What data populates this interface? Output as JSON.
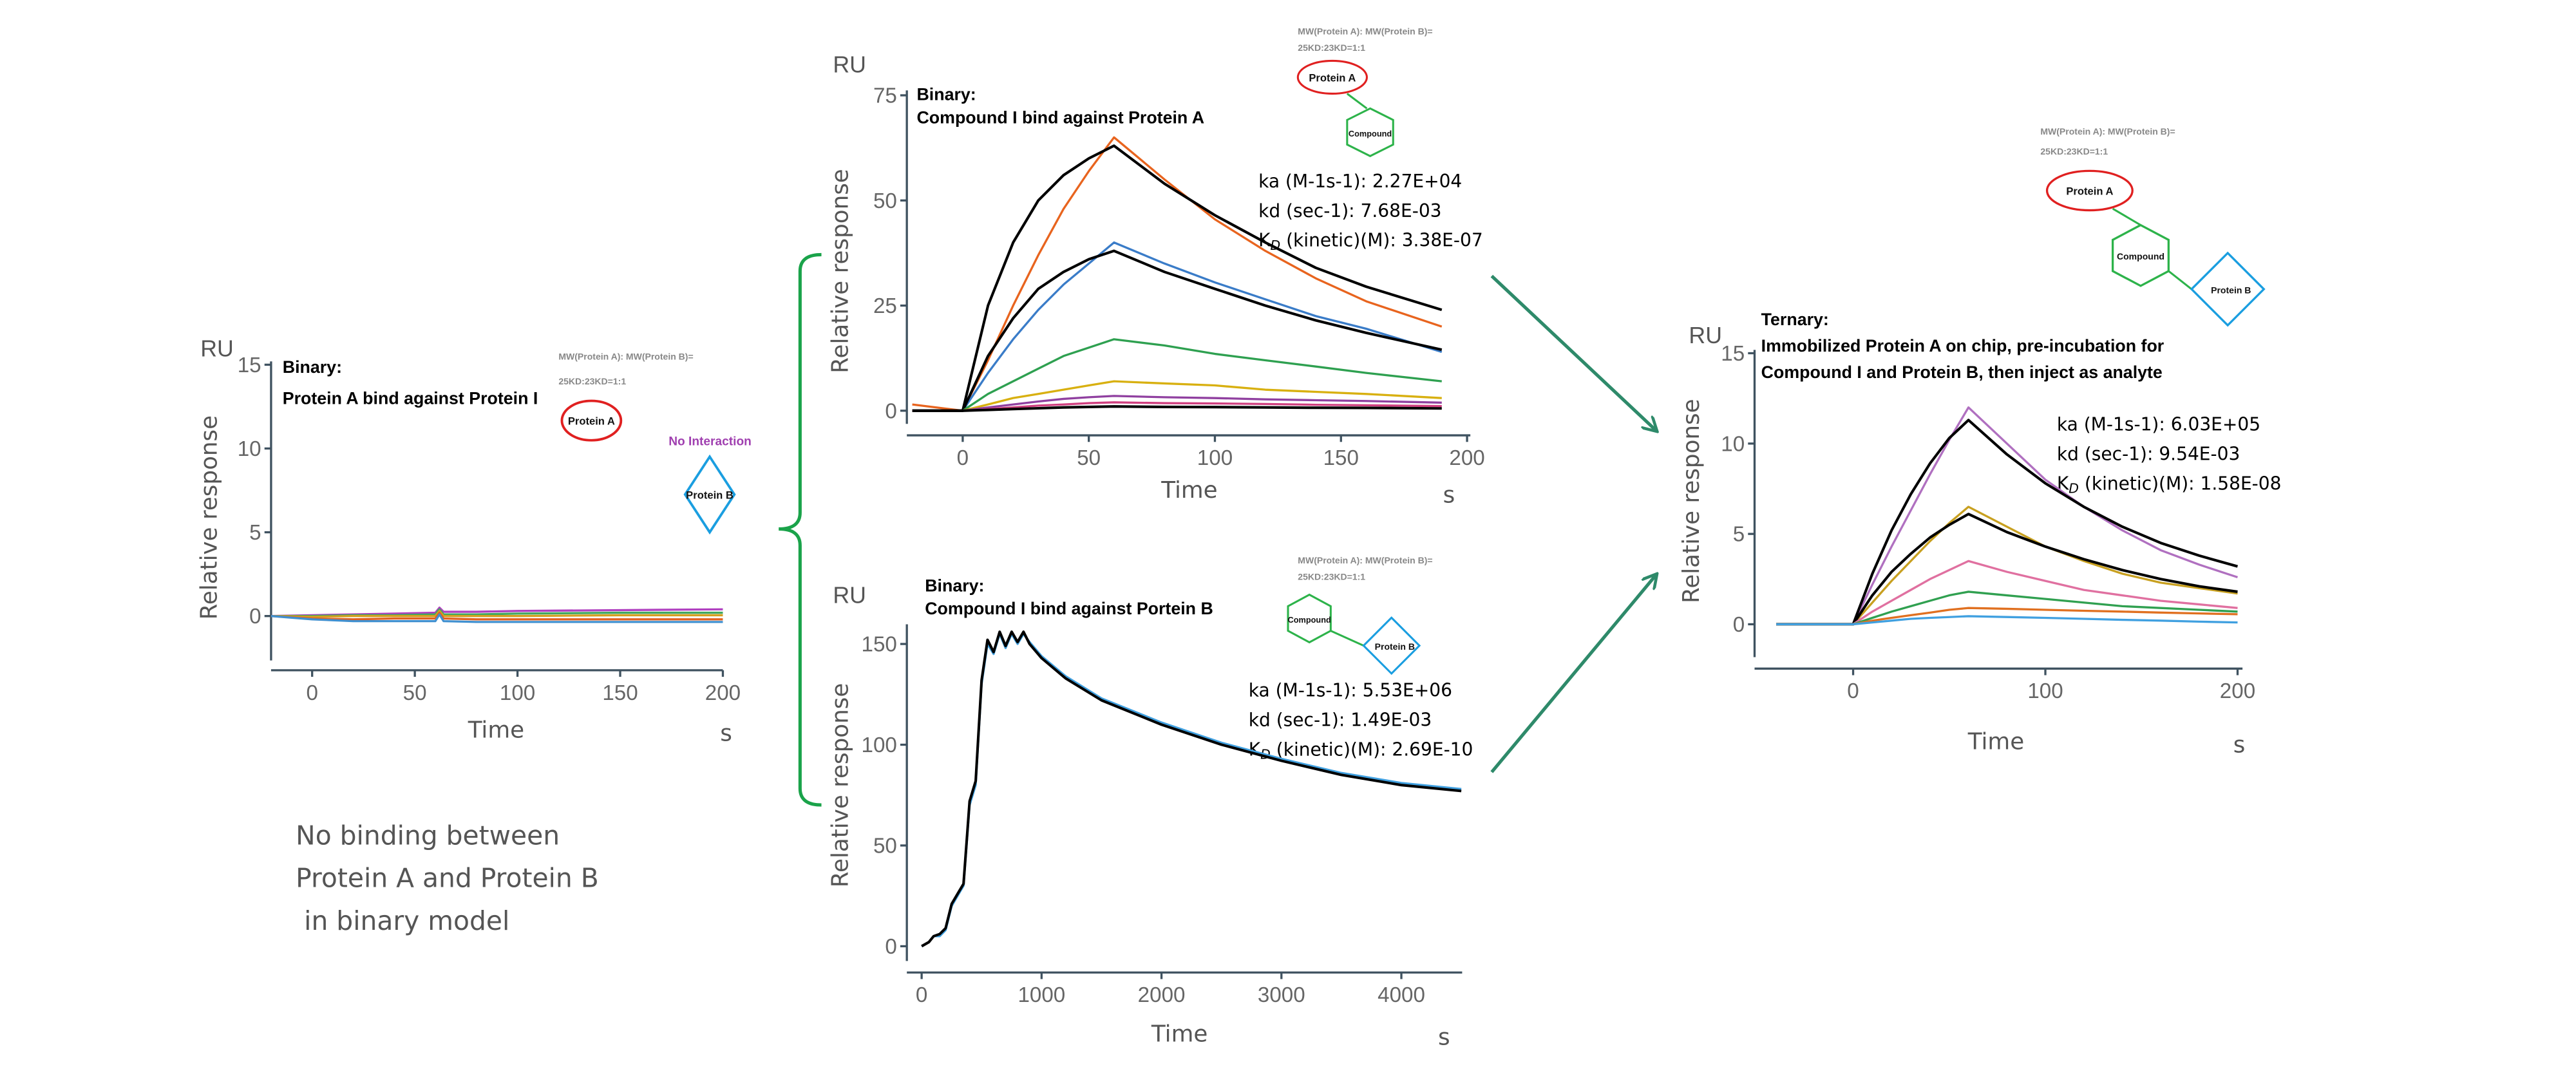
{
  "colors": {
    "arrow": "#2e8a6a",
    "brace": "#1aa34a",
    "protein_a": "#e02020",
    "protein_b": "#1a9ee0",
    "compound": "#2db34a"
  },
  "mw_line1": "MW(Protein A): MW(Protein B)=",
  "mw_line2": "25KD:23KD=1:1",
  "labels": {
    "protein_a": "Protein A",
    "protein_b": "Protein B",
    "compound": "Compound",
    "no_interaction": "No Interaction"
  },
  "note": [
    "No binding between",
    "Protein A and Protein B",
    " in binary model"
  ],
  "chart_data": [
    {
      "type": "line",
      "id": "p1",
      "title": [
        "Binary:",
        "Protein A bind against Protein I"
      ],
      "ylabel": "Relative response",
      "yunit": "RU",
      "xlabel": "Time",
      "xunit": "s",
      "xlim": [
        -20,
        200
      ],
      "ylim": [
        -2.7,
        15
      ],
      "xticks": [
        0,
        50,
        100,
        150,
        200
      ],
      "yticks": [
        0,
        5,
        10,
        15
      ],
      "x": [
        -20,
        0,
        20,
        40,
        60,
        62,
        64,
        80,
        100,
        150,
        200
      ],
      "series": [
        {
          "name": "purple",
          "color": "#b040c0",
          "values": [
            0,
            0.05,
            0.1,
            0.15,
            0.2,
            0.5,
            0.25,
            0.25,
            0.3,
            0.35,
            0.4
          ]
        },
        {
          "name": "green",
          "color": "#40a860",
          "values": [
            0,
            0,
            0.05,
            0.05,
            0.1,
            0.4,
            0.1,
            0.1,
            0.15,
            0.2,
            0.2
          ]
        },
        {
          "name": "gold",
          "color": "#d4a020",
          "values": [
            0,
            -0.05,
            0,
            0,
            0,
            0.3,
            0,
            0,
            0,
            0.05,
            0.05
          ]
        },
        {
          "name": "orange",
          "color": "#e06020",
          "values": [
            0,
            -0.15,
            -0.2,
            -0.15,
            -0.15,
            0.2,
            -0.15,
            -0.2,
            -0.2,
            -0.2,
            -0.2
          ]
        },
        {
          "name": "blue",
          "color": "#4090d0",
          "values": [
            0,
            -0.2,
            -0.3,
            -0.3,
            -0.3,
            0.1,
            -0.3,
            -0.35,
            -0.35,
            -0.35,
            -0.35
          ]
        }
      ]
    },
    {
      "type": "line",
      "id": "p2",
      "title": [
        "Binary:",
        "Compound I bind against Protein A"
      ],
      "ylabel": "Relative response",
      "yunit": "RU",
      "xlabel": "Time",
      "xunit": "s",
      "xlim": [
        -20,
        200
      ],
      "ylim": [
        -1,
        78
      ],
      "xticks": [
        0,
        50,
        100,
        150,
        200
      ],
      "yticks": [
        0,
        25,
        50,
        75
      ],
      "kinetics": {
        "ka": "ka (M-1s-1): 2.27E+04",
        "kd": "kd (sec-1): 7.68E-03",
        "KD_prefix": "K",
        "KD_sub": "D",
        "KD_rest": " (kinetic)(M): 3.38E-07"
      },
      "x": [
        -20,
        0,
        10,
        20,
        30,
        40,
        50,
        60,
        80,
        100,
        120,
        140,
        160,
        190
      ],
      "series": [
        {
          "name": "orange",
          "color": "#e8641e",
          "values": [
            1.5,
            0,
            12,
            25,
            37,
            48,
            57,
            65,
            55,
            45.5,
            38,
            31.5,
            26,
            20
          ]
        },
        {
          "name": "fit-1",
          "color": "#000000",
          "values": [
            0,
            0,
            25,
            40,
            50,
            56,
            60,
            63,
            54,
            46.5,
            40,
            34,
            29.5,
            24
          ]
        },
        {
          "name": "blue",
          "color": "#3a7cc8",
          "values": [
            0,
            0,
            9,
            17,
            24,
            30,
            35,
            40,
            35,
            30.5,
            26.5,
            22.5,
            19.5,
            14
          ]
        },
        {
          "name": "fit-2",
          "color": "#000000",
          "values": [
            0,
            0,
            13,
            22,
            29,
            33,
            36,
            38,
            33,
            29,
            25,
            21.5,
            18.5,
            14.5
          ]
        },
        {
          "name": "green",
          "color": "#2ea050",
          "values": [
            0,
            0,
            4,
            7,
            10,
            13,
            15,
            17,
            15.5,
            13.5,
            12,
            10.5,
            9,
            7
          ]
        },
        {
          "name": "yellow",
          "color": "#d8b010",
          "values": [
            0,
            0,
            1.5,
            3,
            4,
            5,
            6,
            7,
            6.5,
            6,
            5,
            4.5,
            4,
            3
          ]
        },
        {
          "name": "purple",
          "color": "#9040a0",
          "values": [
            0,
            0,
            0.8,
            1.5,
            2.2,
            2.8,
            3.2,
            3.5,
            3.2,
            3,
            2.7,
            2.5,
            2.3,
            1.9
          ]
        },
        {
          "name": "pink",
          "color": "#d04080",
          "values": [
            0,
            0,
            0.4,
            0.8,
            1.2,
            1.5,
            1.8,
            2,
            1.8,
            1.7,
            1.6,
            1.4,
            1.3,
            1.1
          ]
        },
        {
          "name": "fit-3",
          "color": "#000000",
          "values": [
            0,
            0,
            0.2,
            0.4,
            0.6,
            0.8,
            0.9,
            1,
            0.9,
            0.85,
            0.8,
            0.7,
            0.65,
            0.55
          ]
        }
      ]
    },
    {
      "type": "line",
      "id": "p3",
      "title": [
        "Binary:",
        "Compound I bind against Portein B"
      ],
      "ylabel": "Relative response",
      "yunit": "RU",
      "xlabel": "Time",
      "xunit": "s",
      "xlim": [
        -100,
        4500
      ],
      "ylim": [
        -8,
        162
      ],
      "xticks": [
        0,
        1000,
        2000,
        3000,
        4000
      ],
      "yticks": [
        0,
        50,
        100,
        150
      ],
      "kinetics": {
        "ka": "ka (M-1s-1): 5.53E+06",
        "kd": "kd (sec-1): 1.49E-03",
        "KD_prefix": "K",
        "KD_sub": "D",
        "KD_rest": " (kinetic)(M): 2.69E-10"
      },
      "x": [
        0,
        60,
        100,
        150,
        200,
        250,
        300,
        350,
        400,
        450,
        500,
        550,
        600,
        650,
        700,
        750,
        800,
        850,
        900,
        1000,
        1200,
        1500,
        2000,
        2500,
        3000,
        3500,
        4000,
        4500
      ],
      "series": [
        {
          "name": "blue",
          "color": "#40a0e0",
          "values": [
            0,
            2,
            5,
            5,
            8,
            20,
            25,
            30,
            70,
            80,
            130,
            150,
            145,
            155,
            148,
            155,
            150,
            155,
            151,
            144,
            134,
            123,
            111,
            101,
            93,
            86,
            81,
            78
          ]
        },
        {
          "name": "fit",
          "color": "#000000",
          "values": [
            0,
            2,
            5,
            6,
            9,
            21,
            26,
            31,
            72,
            82,
            132,
            152,
            146,
            156,
            149,
            156,
            151,
            156,
            150,
            143,
            133,
            122,
            110,
            100,
            92,
            85,
            80,
            77
          ]
        }
      ]
    },
    {
      "type": "line",
      "id": "p4",
      "title": [
        "Ternary:",
        "Immobilized Protein A on chip, pre-incubation for",
        "Compound I and Protein B, then inject as analyte"
      ],
      "ylabel": "Relative response",
      "yunit": "RU",
      "xlabel": "Time",
      "xunit": "s",
      "xlim": [
        -50,
        200
      ],
      "ylim": [
        -1,
        15
      ],
      "xticks": [
        0,
        100,
        200
      ],
      "yticks": [
        0,
        5,
        10,
        15
      ],
      "kinetics": {
        "ka": "ka (M-1s-1): 6.03E+05",
        "kd": "kd (sec-1): 9.54E-03",
        "KD_prefix": "K",
        "KD_sub": "D",
        "KD_rest": " (kinetic)(M): 1.58E-08"
      },
      "x": [
        -40,
        0,
        10,
        20,
        30,
        40,
        50,
        60,
        80,
        100,
        120,
        140,
        160,
        180,
        200
      ],
      "series": [
        {
          "name": "purple",
          "color": "#b070c0",
          "values": [
            0,
            0,
            2.2,
            4.3,
            6.3,
            8.3,
            10.2,
            12,
            10,
            8,
            6.5,
            5.2,
            4.1,
            3.3,
            2.6
          ]
        },
        {
          "name": "fit-1",
          "color": "#000000",
          "values": [
            0,
            0,
            2.8,
            5.2,
            7.2,
            8.9,
            10.3,
            11.3,
            9.4,
            7.8,
            6.5,
            5.4,
            4.5,
            3.8,
            3.2
          ]
        },
        {
          "name": "yellow",
          "color": "#c8a020",
          "values": [
            0,
            0,
            1.2,
            2.4,
            3.5,
            4.6,
            5.6,
            6.5,
            5.4,
            4.3,
            3.5,
            2.8,
            2.3,
            2,
            1.7
          ]
        },
        {
          "name": "fit-2",
          "color": "#000000",
          "values": [
            0,
            0,
            1.6,
            2.9,
            3.9,
            4.8,
            5.5,
            6.1,
            5.1,
            4.3,
            3.6,
            3,
            2.5,
            2.1,
            1.8
          ]
        },
        {
          "name": "pink",
          "color": "#e070a0",
          "values": [
            0,
            0,
            0.7,
            1.3,
            1.9,
            2.5,
            3,
            3.5,
            2.9,
            2.4,
            1.9,
            1.6,
            1.3,
            1.1,
            0.9
          ]
        },
        {
          "name": "green",
          "color": "#30a050",
          "values": [
            0,
            0,
            0.35,
            0.7,
            1,
            1.3,
            1.6,
            1.8,
            1.6,
            1.4,
            1.2,
            1,
            0.9,
            0.8,
            0.7
          ]
        },
        {
          "name": "orange",
          "color": "#e07020",
          "values": [
            0,
            0,
            0.2,
            0.35,
            0.5,
            0.65,
            0.8,
            0.9,
            0.85,
            0.8,
            0.75,
            0.7,
            0.65,
            0.6,
            0.55
          ]
        },
        {
          "name": "blue",
          "color": "#40a0e0",
          "values": [
            0,
            0,
            0.1,
            0.2,
            0.3,
            0.35,
            0.4,
            0.45,
            0.4,
            0.35,
            0.3,
            0.25,
            0.2,
            0.15,
            0.1
          ]
        }
      ]
    }
  ]
}
